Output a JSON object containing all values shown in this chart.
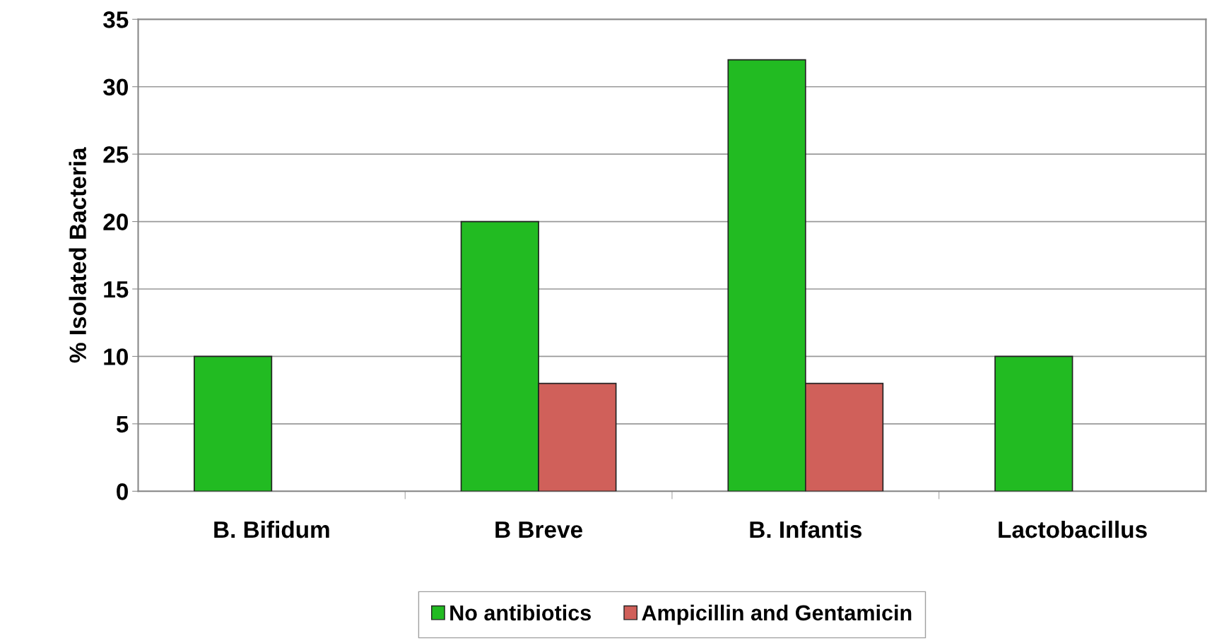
{
  "chart_data": {
    "type": "bar",
    "ylabel": "% Isolated Bacteria",
    "categories": [
      "B. Bifidum",
      "B Breve",
      "B. Infantis",
      "Lactobacillus"
    ],
    "series": [
      {
        "name": "No antibiotics",
        "color": "#22bb22",
        "values": [
          10,
          20,
          32,
          10
        ]
      },
      {
        "name": "Ampicillin and Gentamicin",
        "color": "#d0605a",
        "values": [
          null,
          8,
          8,
          null
        ]
      }
    ],
    "ylim": [
      0,
      35
    ],
    "yticks": [
      0,
      5,
      10,
      15,
      20,
      25,
      30,
      35
    ],
    "grid": "y",
    "legend": "bottom"
  }
}
